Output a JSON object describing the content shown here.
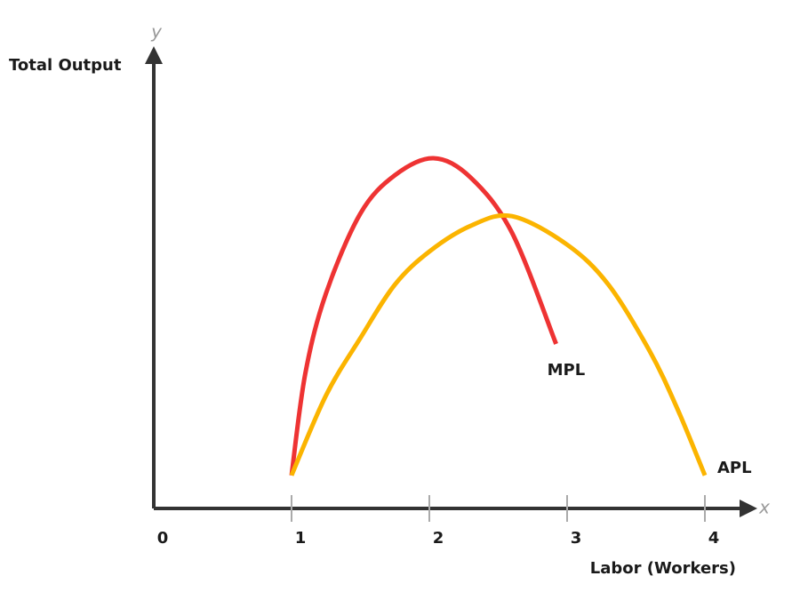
{
  "chart_data": {
    "type": "line",
    "y_axis_letter": "y",
    "x_axis_letter": "x",
    "ylabel": "Total Output",
    "xlabel": "Labor (Workers)",
    "xlim": [
      0,
      4.4
    ],
    "ylim": [
      0,
      10
    ],
    "xticks": [
      0,
      1,
      2,
      3,
      4
    ],
    "series": [
      {
        "name": "MPL",
        "color": "#ee3333",
        "x": [
          1,
          1.1,
          1.25,
          1.5,
          1.75,
          2.03,
          2.3,
          2.6,
          2.92
        ],
        "values": [
          0.72,
          2.94,
          4.68,
          6.42,
          7.25,
          7.62,
          7.2,
          6.0,
          3.58
        ]
      },
      {
        "name": "APL",
        "color": "#fbb400",
        "x": [
          1,
          1.25,
          1.5,
          1.75,
          2.0,
          2.3,
          2.6,
          3.0,
          3.3,
          3.6,
          3.8,
          4.0
        ],
        "values": [
          0.72,
          2.46,
          3.71,
          4.87,
          5.59,
          6.15,
          6.36,
          5.74,
          4.87,
          3.42,
          2.17,
          0.72
        ]
      }
    ]
  }
}
